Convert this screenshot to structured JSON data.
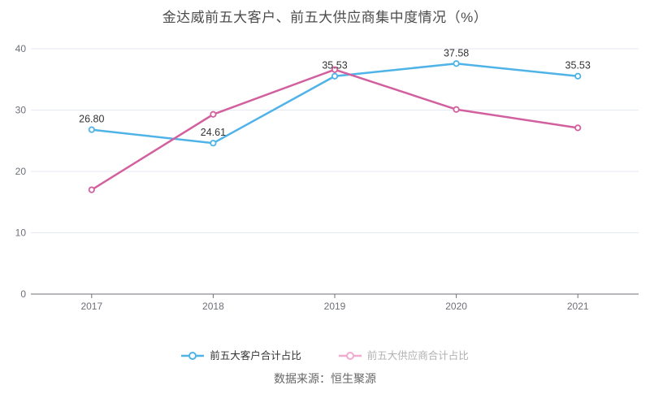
{
  "chart_data": {
    "type": "line",
    "title": "金达威前五大客户、前五大供应商集中度情况（%）",
    "categories": [
      "2017",
      "2018",
      "2019",
      "2020",
      "2021"
    ],
    "series": [
      {
        "name": "前五大客户合计占比",
        "color": "#4fb3e8",
        "values": [
          26.8,
          24.61,
          35.53,
          37.58,
          35.53
        ],
        "data_labels": [
          "26.80",
          "24.61",
          "35.53",
          "37.58",
          "35.53"
        ],
        "show_labels": true
      },
      {
        "name": "前五大供应商合计占比",
        "color": "#d2609e",
        "values": [
          17.0,
          29.3,
          36.6,
          30.1,
          27.1
        ],
        "show_labels": false
      }
    ],
    "ylim": [
      0,
      40
    ],
    "yticks": [
      0,
      10,
      20,
      30,
      40
    ],
    "grid": true,
    "legend_position": "bottom",
    "marker": "hollow-circle"
  },
  "legend": {
    "items": [
      {
        "label": "前五大客户合计占比",
        "marker_color": "#4fb3e8",
        "text_color": "#333333"
      },
      {
        "label": "前五大供应商合计占比",
        "marker_color": "#f1abd0",
        "text_color": "#b1b1b1"
      }
    ]
  },
  "footer": {
    "source_text": "数据来源：恒生聚源"
  },
  "colors": {
    "grid_line": "#e4e9f3",
    "axis_line": "#6e7079",
    "axis_label": "#6e7079",
    "data_label": "#333333",
    "title": "#4c4c4c",
    "background": "#ffffff"
  }
}
